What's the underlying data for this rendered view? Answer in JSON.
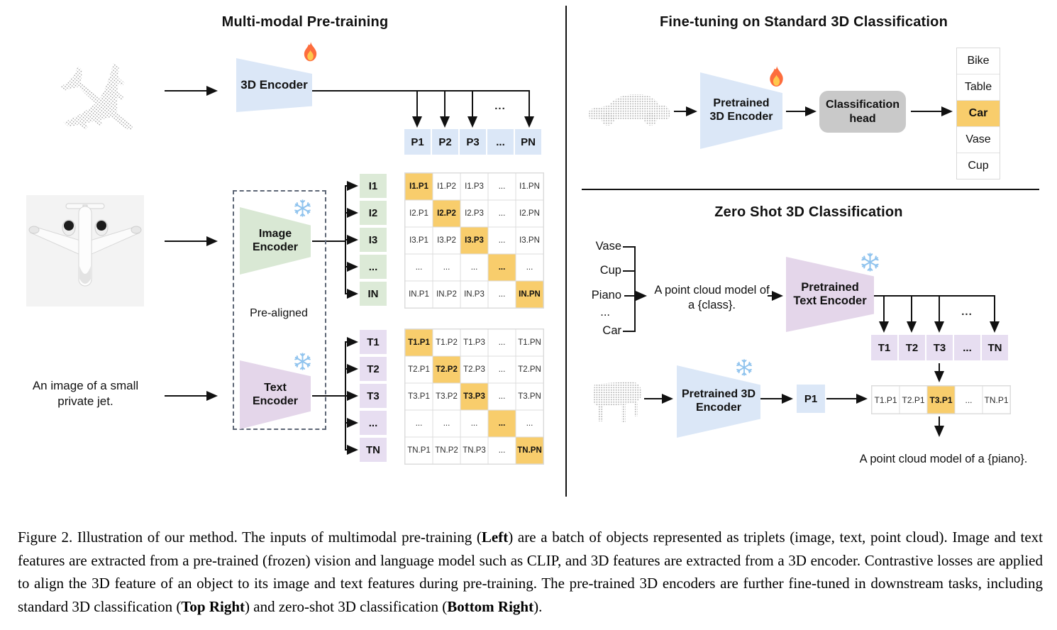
{
  "pretraining": {
    "title": "Multi-modal Pre-training",
    "encoder_3d_label": "3D Encoder",
    "image_encoder_label": "Image Encoder",
    "text_encoder_label": "Text Encoder",
    "prealigned_label": "Pre-aligned",
    "text_input": "An image of a small private jet.",
    "ellipsis": "...",
    "p_row": [
      "P1",
      "P2",
      "P3",
      "...",
      "PN"
    ],
    "image_rows": [
      "I1",
      "I2",
      "I3",
      "...",
      "IN"
    ],
    "text_rows": [
      "T1",
      "T2",
      "T3",
      "...",
      "TN"
    ],
    "image_matrix": [
      [
        "I1.P1",
        "I1.P2",
        "I1.P3",
        "...",
        "I1.PN"
      ],
      [
        "I2.P1",
        "I2.P2",
        "I2.P3",
        "...",
        "I2.PN"
      ],
      [
        "I3.P1",
        "I3.P2",
        "I3.P3",
        "...",
        "I3.PN"
      ],
      [
        "...",
        "...",
        "...",
        "...",
        "..."
      ],
      [
        "IN.P1",
        "IN.P2",
        "IN.P3",
        "...",
        "IN.PN"
      ]
    ],
    "text_matrix": [
      [
        "T1.P1",
        "T1.P2",
        "T1.P3",
        "...",
        "T1.PN"
      ],
      [
        "T2.P1",
        "T2.P2",
        "T2.P3",
        "...",
        "T2.PN"
      ],
      [
        "T3.P1",
        "T3.P2",
        "T3.P3",
        "...",
        "T3.PN"
      ],
      [
        "...",
        "...",
        "...",
        "...",
        "..."
      ],
      [
        "TN.P1",
        "TN.P2",
        "TN.P3",
        "...",
        "TN.PN"
      ]
    ]
  },
  "finetuning": {
    "title": "Fine-tuning on Standard 3D Classification",
    "encoder_label": "Pretrained 3D Encoder",
    "head_label": "Classification head",
    "classes": [
      "Bike",
      "Table",
      "Car",
      "Vase",
      "Cup"
    ],
    "predicted_class": "Car"
  },
  "zeroshot": {
    "title": "Zero Shot 3D Classification",
    "prompt_classes": [
      "Vase",
      "Cup",
      "Piano",
      "...",
      "Car"
    ],
    "prompt_template": "A point cloud model of a {class}.",
    "text_encoder_label": "Pretrained Text Encoder",
    "encoder_3d_label": "Pretrained 3D Encoder",
    "p_cell": "P1",
    "ellipsis": "...",
    "t_row": [
      "T1",
      "T2",
      "T3",
      "...",
      "TN"
    ],
    "result_row": [
      "T1.P1",
      "T2.P1",
      "T3.P1",
      "...",
      "TN.P1"
    ],
    "highlighted_result": "T3.P1",
    "output_text": "A point cloud model of a {piano}."
  },
  "icons": {
    "flame": "flame-icon (trainable)",
    "snowflake": "snowflake-icon (frozen)"
  },
  "colors": {
    "encoder_blue": "#dbe7f7",
    "encoder_green": "#d9e8d4",
    "encoder_purple": "#e4d6ea",
    "cell_green": "#dcead7",
    "cell_purple": "#e7def1",
    "highlight_orange": "#f8cd6c",
    "head_gray": "#c9c9c9"
  },
  "caption": {
    "segments": [
      {
        "text": "Figure 2. Illustration of our method. The inputs of multimodal pre-training (",
        "bold": false
      },
      {
        "text": "Left",
        "bold": true
      },
      {
        "text": ") are a batch of objects represented as triplets (image, text, point cloud). Image and text features are extracted from a pre-trained (frozen) vision and language model such as CLIP, and 3D features are extracted from a 3D encoder. Contrastive losses are applied to align the 3D feature of an object to its image and text features during pre-training. The pre-trained 3D encoders are further fine-tuned in downstream tasks, including standard 3D classification (",
        "bold": false
      },
      {
        "text": "Top Right",
        "bold": true
      },
      {
        "text": ") and zero-shot 3D classification (",
        "bold": false
      },
      {
        "text": "Bottom Right",
        "bold": true
      },
      {
        "text": ").",
        "bold": false
      }
    ]
  }
}
